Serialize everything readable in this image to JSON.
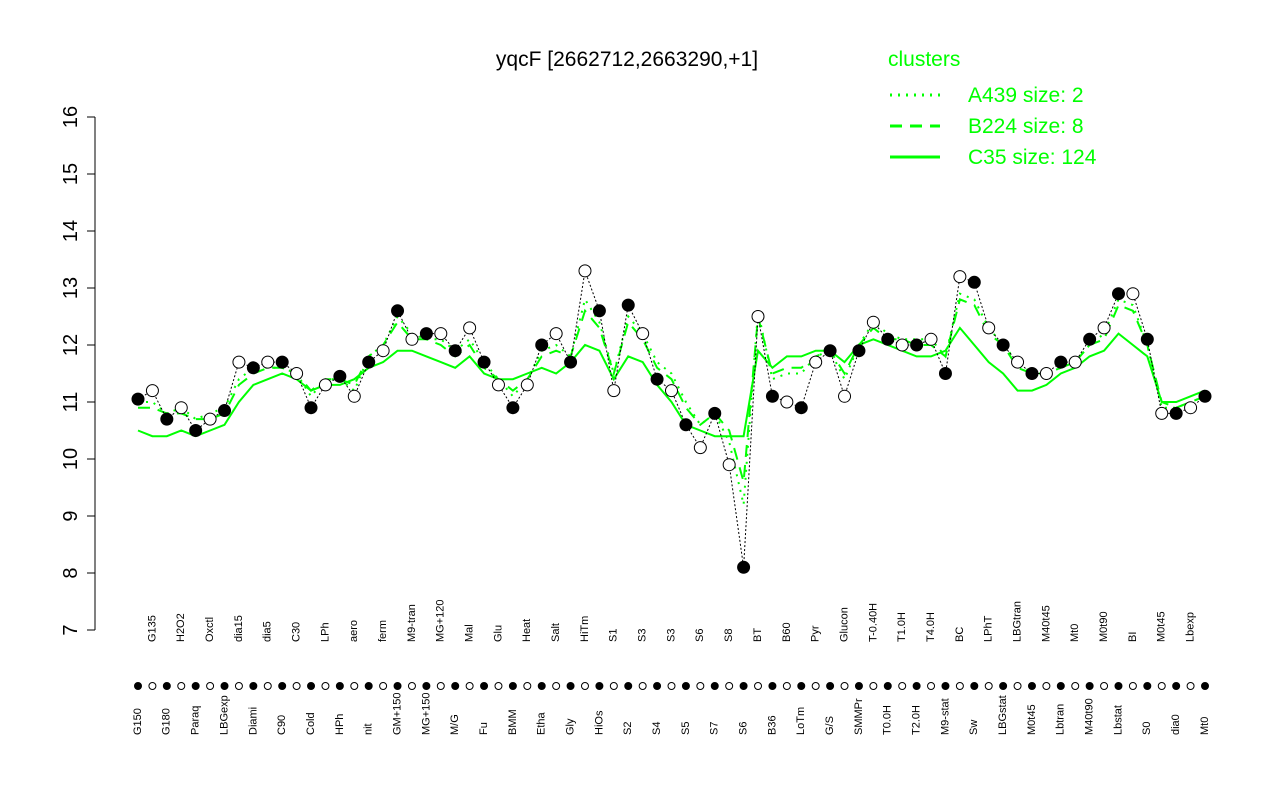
{
  "chart_data": {
    "type": "line",
    "title": "yqcF [2662712,2663290,+1]",
    "legend_title": "clusters",
    "legend_color": "#00ff00",
    "categories": [
      "G150",
      "G135",
      "G180",
      "H2O2",
      "Paraq",
      "Oxctl",
      "LBGexp",
      "dia15",
      "Diami",
      "dia5",
      "C90",
      "C30",
      "Cold",
      "LPh",
      "HPh",
      "aero",
      "nit",
      "ferm",
      "GM+150",
      "M9-tran",
      "MG+150",
      "MG+120",
      "M/G",
      "Mal",
      "Fu",
      "Glu",
      "BMM",
      "Heat",
      "Etha",
      "Salt",
      "Gly",
      "HiTm",
      "HiOs",
      "S1",
      "S2",
      "S3",
      "S4",
      "S3",
      "S5",
      "S6",
      "S7",
      "S8",
      "S6",
      "BT",
      "B36",
      "B60",
      "LoTm",
      "Pyr",
      "G/S",
      "Glucon",
      "SMMPr",
      "T-0.40H",
      "T0.0H",
      "T1.0H",
      "T2.0H",
      "T4.0H",
      "M9-stat",
      "BC",
      "Sw",
      "LPhT",
      "LBGstat",
      "LBGtran",
      "M0t45",
      "M40t45",
      "Lbtran",
      "Mt0",
      "M40t90",
      "M0t90",
      "Lbstat",
      "BI",
      "S0",
      "M0t45",
      "dia0",
      "Lbexp",
      "Mt0"
    ],
    "values": [
      11.05,
      11.2,
      10.7,
      10.9,
      10.5,
      10.7,
      10.85,
      11.7,
      11.6,
      11.7,
      11.7,
      11.5,
      10.9,
      11.3,
      11.45,
      11.1,
      11.7,
      11.9,
      12.6,
      12.1,
      12.2,
      12.2,
      11.9,
      12.3,
      11.7,
      11.3,
      10.9,
      11.3,
      12.0,
      12.2,
      11.7,
      13.3,
      12.6,
      11.2,
      12.7,
      12.2,
      11.4,
      11.2,
      10.6,
      10.2,
      10.8,
      9.9,
      8.1,
      12.5,
      11.1,
      11.0,
      10.9,
      11.7,
      11.9,
      11.1,
      11.9,
      12.4,
      12.1,
      12.0,
      12.0,
      12.1,
      11.5,
      13.2,
      13.1,
      12.3,
      12.0,
      11.7,
      11.5,
      11.5,
      11.7,
      11.7,
      12.1,
      12.3,
      12.9,
      12.9,
      12.1,
      10.8,
      10.8,
      10.9,
      11.1
    ],
    "series": [
      {
        "name": "A439 size: 2",
        "color": "#00ff00",
        "dash": "dotted",
        "values": [
          11.0,
          11.0,
          10.8,
          10.9,
          10.7,
          10.8,
          10.9,
          11.4,
          11.6,
          11.6,
          11.6,
          11.5,
          11.1,
          11.4,
          11.4,
          11.2,
          11.8,
          12.0,
          12.5,
          12.2,
          12.1,
          12.1,
          11.9,
          12.1,
          11.7,
          11.4,
          11.1,
          11.4,
          11.9,
          12.0,
          11.8,
          12.8,
          12.4,
          11.5,
          12.5,
          12.2,
          11.7,
          11.5,
          11.0,
          10.6,
          10.8,
          10.3,
          9.2,
          12.6,
          11.4,
          11.5,
          11.5,
          11.8,
          11.9,
          11.4,
          12.0,
          12.4,
          12.2,
          12.1,
          12.1,
          12.1,
          11.8,
          12.9,
          12.8,
          12.3,
          12.0,
          11.7,
          11.5,
          11.5,
          11.6,
          11.7,
          12.0,
          12.2,
          12.8,
          12.7,
          12.0,
          10.9,
          10.9,
          11.0,
          11.1
        ]
      },
      {
        "name": "B224 size: 8",
        "color": "#00ff00",
        "dash": "dashed",
        "values": [
          10.9,
          10.9,
          10.8,
          10.8,
          10.7,
          10.7,
          10.8,
          11.3,
          11.5,
          11.6,
          11.6,
          11.5,
          11.2,
          11.4,
          11.4,
          11.3,
          11.8,
          12.0,
          12.4,
          12.1,
          12.1,
          12.0,
          11.8,
          12.0,
          11.6,
          11.4,
          11.2,
          11.4,
          11.8,
          11.9,
          11.8,
          12.6,
          12.3,
          11.5,
          12.4,
          12.1,
          11.6,
          11.4,
          10.9,
          10.6,
          10.8,
          10.5,
          9.6,
          12.5,
          11.5,
          11.6,
          11.6,
          11.8,
          11.9,
          11.5,
          12.0,
          12.3,
          12.1,
          12.1,
          12.0,
          12.0,
          11.8,
          12.8,
          12.7,
          12.2,
          12.0,
          11.6,
          11.5,
          11.5,
          11.6,
          11.7,
          12.0,
          12.1,
          12.7,
          12.6,
          12.0,
          11.0,
          10.9,
          11.0,
          11.1
        ]
      },
      {
        "name": "C35 size: 124",
        "color": "#00ff00",
        "dash": "solid",
        "values": [
          10.5,
          10.4,
          10.4,
          10.5,
          10.4,
          10.5,
          10.6,
          11.0,
          11.3,
          11.4,
          11.5,
          11.4,
          11.2,
          11.3,
          11.3,
          11.4,
          11.6,
          11.7,
          11.9,
          11.9,
          11.8,
          11.7,
          11.6,
          11.8,
          11.5,
          11.4,
          11.4,
          11.5,
          11.6,
          11.5,
          11.7,
          12.0,
          11.9,
          11.4,
          11.8,
          11.7,
          11.3,
          11.0,
          10.6,
          10.5,
          10.4,
          10.4,
          10.4,
          11.9,
          11.6,
          11.8,
          11.8,
          11.9,
          11.9,
          11.7,
          12.0,
          12.1,
          12.0,
          11.9,
          11.8,
          11.8,
          11.9,
          12.3,
          12.0,
          11.7,
          11.5,
          11.2,
          11.2,
          11.3,
          11.5,
          11.6,
          11.8,
          11.9,
          12.2,
          12.0,
          11.8,
          11.0,
          11.0,
          11.1,
          11.2
        ]
      }
    ],
    "ylim": [
      7,
      16
    ],
    "yticks": [
      7,
      8,
      9,
      10,
      11,
      12,
      13,
      14,
      15,
      16
    ]
  }
}
